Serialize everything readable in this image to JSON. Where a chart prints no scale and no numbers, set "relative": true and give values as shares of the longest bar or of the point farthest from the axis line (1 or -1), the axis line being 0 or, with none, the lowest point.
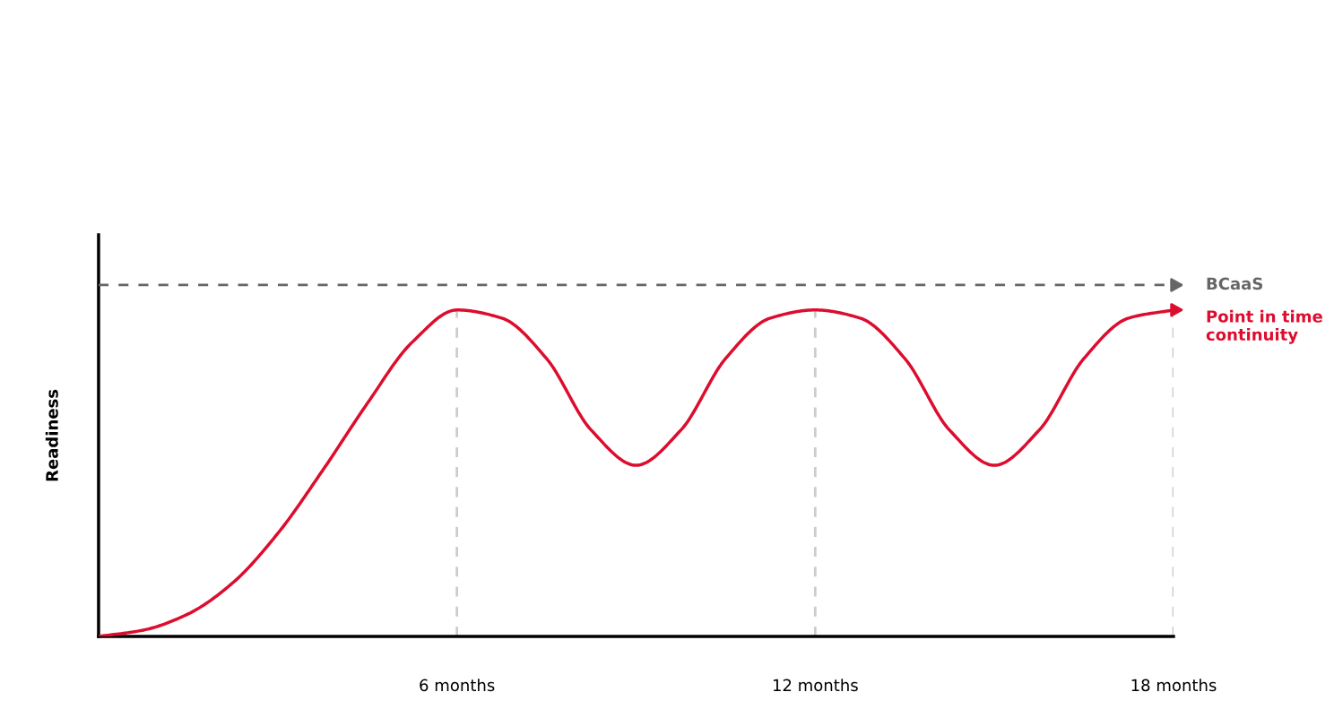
{
  "chart_data": {
    "type": "line",
    "relative": true,
    "ylabel": "Readiness",
    "xlim": [
      0,
      18
    ],
    "xticks": [
      {
        "value": 6,
        "label": "6 months"
      },
      {
        "value": 12,
        "label": "12 months"
      },
      {
        "value": 18,
        "label": "18 months"
      }
    ],
    "grid": "x",
    "legend": "right",
    "series": [
      {
        "name": "BCaaS",
        "color": "#666666",
        "line_style": "dashed",
        "x": [
          0,
          18
        ],
        "values": [
          1,
          1
        ]
      },
      {
        "name": "Point in time continuity",
        "color": "#dc0d2e",
        "line_style": "solid",
        "x": [
          0,
          0.75,
          1.5,
          2.25,
          3,
          3.75,
          4.5,
          5.25,
          6,
          6.75,
          7.5,
          8.25,
          9,
          9.75,
          10.5,
          11.25,
          12,
          12.75,
          13.5,
          14.25,
          15,
          15.75,
          16.5,
          17.25,
          18
        ],
        "values": [
          0,
          0.018,
          0.064,
          0.153,
          0.293,
          0.472,
          0.663,
          0.837,
          0.929,
          0.906,
          0.791,
          0.587,
          0.487,
          0.587,
          0.791,
          0.906,
          0.929,
          0.906,
          0.791,
          0.587,
          0.487,
          0.587,
          0.791,
          0.906,
          0.929
        ]
      }
    ]
  }
}
